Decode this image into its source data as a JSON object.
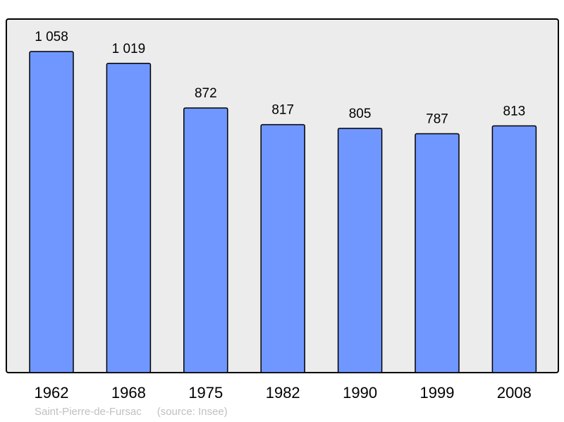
{
  "chart_data": {
    "type": "bar",
    "categories": [
      "1962",
      "1968",
      "1975",
      "1982",
      "1990",
      "1999",
      "2008"
    ],
    "values": [
      1058,
      1019,
      872,
      817,
      805,
      787,
      813
    ],
    "value_labels": [
      "1 058",
      "1 019",
      "872",
      "817",
      "805",
      "787",
      "813"
    ],
    "title": "",
    "xlabel": "",
    "ylabel": "",
    "ylim": [
      0,
      1165
    ],
    "grid": false,
    "legend": "none",
    "colors": {
      "bar": "#7097ff",
      "background": "#ececec",
      "frame": "#000000"
    }
  },
  "caption": {
    "place": "Saint-Pierre-de-Fursac",
    "source": "(source: Insee)"
  }
}
